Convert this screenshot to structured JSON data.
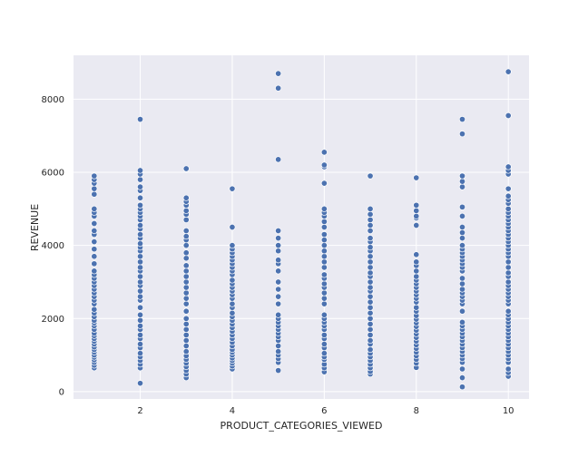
{
  "chart_data": {
    "type": "scatter",
    "title": "",
    "xlabel": "PRODUCT_CATEGORIES_VIEWED",
    "ylabel": "REVENUE",
    "xlim": [
      0.55,
      10.45
    ],
    "ylim": [
      -200,
      9200
    ],
    "xticks": [
      2,
      4,
      6,
      8,
      10
    ],
    "yticks": [
      0,
      2000,
      4000,
      6000,
      8000
    ],
    "grid": true,
    "background_color": "#eaeaf2",
    "point_color": "#4c72b0",
    "series": [
      {
        "x": 1,
        "y": [
          650,
          720,
          800,
          870,
          940,
          1000,
          1080,
          1150,
          1220,
          1300,
          1380,
          1450,
          1530,
          1600,
          1700,
          1800,
          1880,
          1950,
          2050,
          2150,
          2250,
          2400,
          2500,
          2600,
          2700,
          2800,
          2900,
          3000,
          3100,
          3200,
          3300,
          3500,
          3700,
          3900,
          4100,
          4300,
          4400,
          4600,
          4800,
          4900,
          5000,
          5400,
          5550,
          5700,
          5800,
          5900
        ]
      },
      {
        "x": 2,
        "y": [
          230,
          650,
          750,
          850,
          950,
          1050,
          1200,
          1300,
          1450,
          1550,
          1700,
          1800,
          1950,
          2100,
          2300,
          2500,
          2600,
          2750,
          2900,
          3000,
          3150,
          3300,
          3400,
          3550,
          3700,
          3850,
          3950,
          4050,
          4200,
          4300,
          4450,
          4550,
          4700,
          4800,
          4900,
          5000,
          5100,
          5300,
          5500,
          5600,
          5800,
          5950,
          6050,
          7450
        ]
      },
      {
        "x": 3,
        "y": [
          380,
          480,
          580,
          680,
          780,
          880,
          980,
          1100,
          1250,
          1400,
          1550,
          1700,
          1850,
          2000,
          2200,
          2400,
          2550,
          2700,
          2850,
          3000,
          3150,
          3300,
          3450,
          3650,
          3800,
          4000,
          4150,
          4250,
          4400,
          4700,
          4850,
          4950,
          5100,
          5200,
          5300,
          6100
        ]
      },
      {
        "x": 4,
        "y": [
          620,
          700,
          780,
          850,
          920,
          1000,
          1080,
          1150,
          1250,
          1350,
          1450,
          1550,
          1650,
          1750,
          1850,
          1950,
          2050,
          2150,
          2300,
          2400,
          2550,
          2650,
          2750,
          2850,
          2950,
          3050,
          3200,
          3300,
          3400,
          3500,
          3600,
          3700,
          3800,
          3900,
          4000,
          4500,
          5550
        ]
      },
      {
        "x": 5,
        "y": [
          580,
          800,
          900,
          1000,
          1100,
          1250,
          1400,
          1500,
          1600,
          1700,
          1800,
          1900,
          2000,
          2100,
          2400,
          2600,
          2800,
          3000,
          3300,
          3500,
          3600,
          3850,
          4000,
          4200,
          4400,
          6350,
          8300,
          8700
        ]
      },
      {
        "x": 6,
        "y": [
          540,
          650,
          750,
          880,
          950,
          1050,
          1200,
          1300,
          1450,
          1550,
          1700,
          1800,
          1900,
          2000,
          2100,
          2400,
          2550,
          2700,
          2850,
          2950,
          3100,
          3200,
          3400,
          3550,
          3700,
          3850,
          4000,
          4150,
          4300,
          4500,
          4650,
          4800,
          4900,
          5000,
          5700,
          6150,
          6200,
          6550
        ]
      },
      {
        "x": 7,
        "y": [
          480,
          550,
          650,
          750,
          850,
          950,
          1050,
          1150,
          1300,
          1400,
          1550,
          1700,
          1850,
          2000,
          2150,
          2300,
          2450,
          2600,
          2750,
          2850,
          3000,
          3150,
          3250,
          3400,
          3550,
          3700,
          3850,
          3950,
          4100,
          4200,
          4400,
          4550,
          4700,
          4850,
          5000,
          5900
        ]
      },
      {
        "x": 8,
        "y": [
          660,
          780,
          880,
          980,
          1080,
          1180,
          1280,
          1380,
          1480,
          1580,
          1680,
          1780,
          1880,
          1980,
          2080,
          2200,
          2300,
          2450,
          2550,
          2650,
          2750,
          2850,
          2950,
          3050,
          3150,
          3300,
          3450,
          3550,
          3750,
          4550,
          4750,
          4800,
          4950,
          5100,
          5850
        ]
      },
      {
        "x": 9,
        "y": [
          130,
          380,
          620,
          800,
          900,
          1000,
          1100,
          1200,
          1300,
          1400,
          1500,
          1600,
          1700,
          1800,
          1900,
          2200,
          2400,
          2500,
          2600,
          2700,
          2800,
          2950,
          3100,
          3300,
          3400,
          3500,
          3600,
          3700,
          3800,
          3900,
          4000,
          4200,
          4350,
          4500,
          4800,
          5050,
          5600,
          5750,
          5900,
          7050,
          7450
        ]
      },
      {
        "x": 10,
        "y": [
          420,
          520,
          620,
          800,
          900,
          1000,
          1100,
          1200,
          1300,
          1400,
          1500,
          1600,
          1700,
          1800,
          1900,
          2000,
          2100,
          2200,
          2400,
          2500,
          2600,
          2700,
          2800,
          2900,
          3000,
          3150,
          3250,
          3400,
          3550,
          3700,
          3800,
          3900,
          4000,
          4100,
          4200,
          4300,
          4400,
          4500,
          4600,
          4700,
          4800,
          4900,
          5000,
          5150,
          5250,
          5350,
          5550,
          5950,
          6050,
          6150,
          7550,
          8750
        ]
      }
    ]
  }
}
